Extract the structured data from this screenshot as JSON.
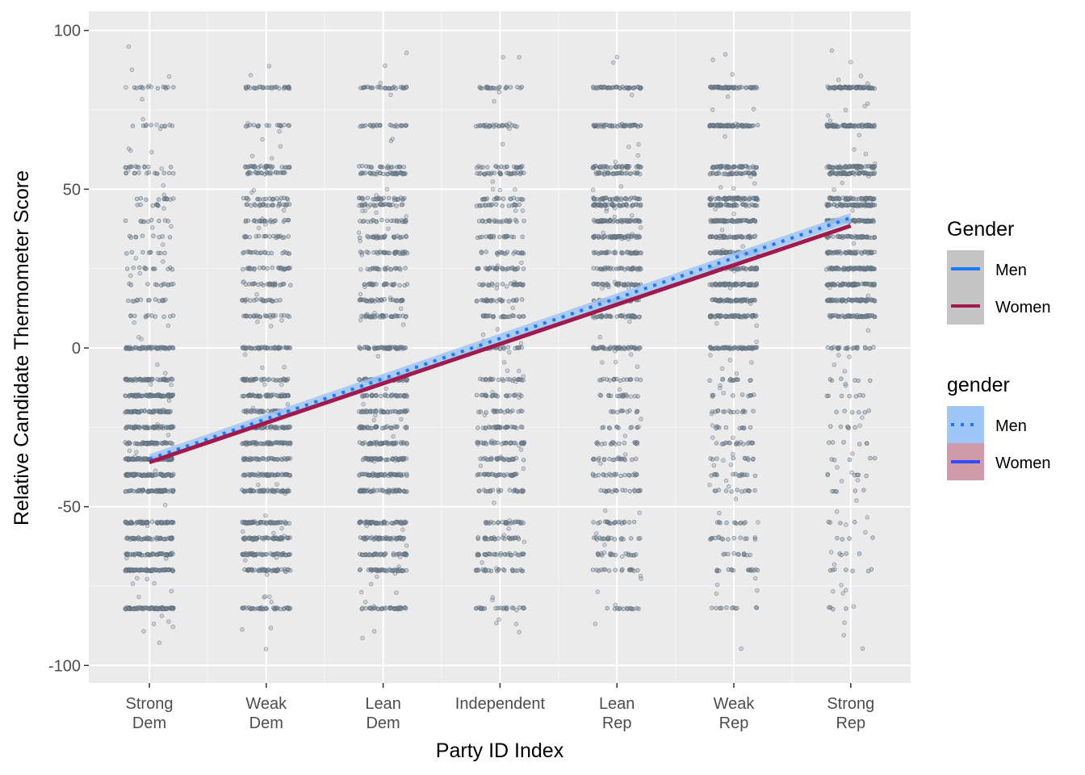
{
  "chart_data": {
    "type": "scatter",
    "title": "",
    "xlabel": "Party ID Index",
    "ylabel": "Relative Candidate Thermometer Score",
    "categories": [
      "Strong\nDem",
      "Weak\nDem",
      "Lean\nDem",
      "Independent",
      "Lean\nRep",
      "Weak\nRep",
      "Strong\nRep"
    ],
    "y_ticks": [
      100,
      50,
      0,
      -50,
      -100
    ],
    "ylim": [
      -105,
      100
    ],
    "grid": true,
    "points": {
      "description": "jittered individual respondent scores per party ID category",
      "color": "#5b6b7b",
      "common_levels": [
        82,
        70,
        57,
        55,
        47,
        45,
        40,
        35,
        30,
        25,
        20,
        15,
        10,
        0,
        -10,
        -15,
        -20,
        -25,
        -30,
        -35,
        -40,
        -45,
        -55,
        -60,
        -65,
        -70,
        -82
      ]
    },
    "series": [
      {
        "name": "Men",
        "x": [
          1,
          7
        ],
        "y": [
          -35,
          41
        ],
        "color": "#1f77ff",
        "line": "dotted"
      },
      {
        "name": "Women",
        "x": [
          1,
          7
        ],
        "y": [
          -36,
          38.5
        ],
        "color": "#a01a4e",
        "line": "solid"
      }
    ],
    "legends": [
      {
        "title": "Gender",
        "position": "right",
        "items": [
          {
            "label": "Men",
            "color": "#1f77ff",
            "line": "solid"
          },
          {
            "label": "Women",
            "color": "#a01a4e",
            "line": "solid"
          }
        ]
      },
      {
        "title": "gender",
        "position": "right",
        "items": [
          {
            "label": "Men",
            "color": "#1f77ff",
            "line": "dotted",
            "fill": "#9ec6f6"
          },
          {
            "label": "Women",
            "color": "#2f4dff",
            "line": "solid",
            "fill": "#cf9aa9"
          }
        ]
      }
    ]
  }
}
